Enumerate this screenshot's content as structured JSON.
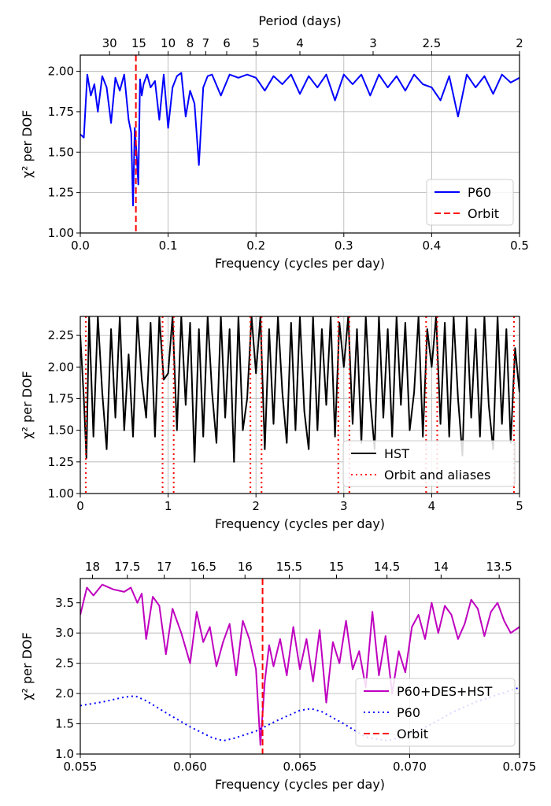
{
  "figure": {
    "panels": [
      "top",
      "middle",
      "bottom"
    ]
  },
  "chart_data": [
    {
      "type": "line",
      "xlabel": "Frequency (cycles per day)",
      "ylabel": "χ² per DOF",
      "top_xlabel": "Period (days)",
      "xlim": [
        0.0,
        0.5
      ],
      "ylim": [
        1.0,
        2.1
      ],
      "xticks": [
        0.0,
        0.1,
        0.2,
        0.3,
        0.4,
        0.5
      ],
      "xtick_labels": [
        "0.0",
        "0.1",
        "0.2",
        "0.3",
        "0.4",
        "0.5"
      ],
      "yticks": [
        1.0,
        1.25,
        1.5,
        1.75,
        2.0
      ],
      "ytick_labels": [
        "1.00",
        "1.25",
        "1.50",
        "1.75",
        "2.00"
      ],
      "top_ticks_period": [
        30,
        15,
        10,
        8,
        7,
        6,
        5,
        4,
        3,
        2.5,
        2
      ],
      "top_tick_labels": [
        "30",
        "15",
        "10",
        "8",
        "7",
        "6",
        "5",
        "4",
        "3",
        "2.5",
        "2"
      ],
      "grid": true,
      "legend_position": "lower-right",
      "series": [
        {
          "name": "P60",
          "color": "#0000ff",
          "style": "solid",
          "x": [
            0.0,
            0.004,
            0.008,
            0.012,
            0.016,
            0.02,
            0.025,
            0.03,
            0.035,
            0.04,
            0.045,
            0.05,
            0.055,
            0.058,
            0.06,
            0.062,
            0.064,
            0.066,
            0.068,
            0.07,
            0.072,
            0.076,
            0.08,
            0.085,
            0.09,
            0.095,
            0.1,
            0.105,
            0.11,
            0.115,
            0.12,
            0.125,
            0.13,
            0.135,
            0.14,
            0.145,
            0.15,
            0.16,
            0.17,
            0.18,
            0.19,
            0.2,
            0.21,
            0.22,
            0.23,
            0.24,
            0.25,
            0.26,
            0.27,
            0.28,
            0.29,
            0.3,
            0.31,
            0.32,
            0.33,
            0.34,
            0.35,
            0.36,
            0.37,
            0.38,
            0.39,
            0.4,
            0.41,
            0.42,
            0.43,
            0.44,
            0.45,
            0.46,
            0.47,
            0.48,
            0.49,
            0.5
          ],
          "y": [
            1.61,
            1.59,
            1.98,
            1.85,
            1.92,
            1.75,
            1.97,
            1.9,
            1.68,
            1.96,
            1.88,
            1.98,
            1.7,
            1.62,
            1.17,
            1.65,
            1.5,
            1.3,
            1.95,
            1.85,
            1.92,
            1.98,
            1.9,
            1.94,
            1.7,
            1.98,
            1.65,
            1.9,
            1.97,
            1.99,
            1.72,
            1.88,
            1.8,
            1.42,
            1.9,
            1.97,
            1.98,
            1.85,
            1.98,
            1.96,
            1.98,
            1.96,
            1.88,
            1.97,
            1.92,
            1.98,
            1.86,
            1.97,
            1.9,
            1.98,
            1.82,
            1.98,
            1.92,
            1.98,
            1.85,
            1.98,
            1.9,
            1.97,
            1.88,
            1.98,
            1.92,
            1.9,
            1.82,
            1.97,
            1.72,
            1.98,
            1.9,
            1.97,
            1.86,
            1.98,
            1.93,
            1.96
          ]
        }
      ],
      "vlines": [
        {
          "name": "Orbit",
          "color": "#ff0000",
          "style": "dashed",
          "x": [
            0.0633
          ]
        }
      ]
    },
    {
      "type": "line",
      "xlabel": "Frequency (cycles per day)",
      "ylabel": "χ² per DOF",
      "xlim": [
        0,
        5
      ],
      "ylim": [
        1.0,
        2.4
      ],
      "xticks": [
        0,
        1,
        2,
        3,
        4,
        5
      ],
      "xtick_labels": [
        "0",
        "1",
        "2",
        "3",
        "4",
        "5"
      ],
      "yticks": [
        1.0,
        1.25,
        1.5,
        1.75,
        2.0,
        2.25
      ],
      "ytick_labels": [
        "1.00",
        "1.25",
        "1.50",
        "1.75",
        "2.00",
        "2.25"
      ],
      "grid": true,
      "legend_position": "lower-right",
      "series": [
        {
          "name": "HST",
          "color": "#000000",
          "style": "solid",
          "x": [
            0.0,
            0.04,
            0.07,
            0.1,
            0.15,
            0.2,
            0.25,
            0.3,
            0.35,
            0.4,
            0.45,
            0.5,
            0.55,
            0.6,
            0.65,
            0.7,
            0.75,
            0.8,
            0.85,
            0.9,
            0.95,
            1.0,
            1.05,
            1.1,
            1.15,
            1.2,
            1.25,
            1.3,
            1.35,
            1.4,
            1.45,
            1.5,
            1.55,
            1.6,
            1.65,
            1.7,
            1.75,
            1.8,
            1.85,
            1.9,
            1.95,
            2.0,
            2.05,
            2.1,
            2.15,
            2.2,
            2.25,
            2.3,
            2.35,
            2.4,
            2.45,
            2.5,
            2.55,
            2.6,
            2.65,
            2.7,
            2.75,
            2.8,
            2.85,
            2.9,
            2.95,
            3.0,
            3.05,
            3.1,
            3.15,
            3.2,
            3.25,
            3.3,
            3.35,
            3.4,
            3.45,
            3.5,
            3.55,
            3.6,
            3.65,
            3.7,
            3.75,
            3.8,
            3.85,
            3.9,
            3.95,
            4.0,
            4.05,
            4.1,
            4.15,
            4.2,
            4.25,
            4.3,
            4.35,
            4.4,
            4.45,
            4.5,
            4.55,
            4.6,
            4.65,
            4.7,
            4.75,
            4.8,
            4.85,
            4.9,
            4.95,
            5.0
          ],
          "y": [
            2.25,
            1.75,
            1.28,
            2.4,
            1.45,
            2.4,
            1.8,
            1.35,
            2.3,
            1.6,
            2.4,
            1.5,
            2.1,
            1.45,
            2.4,
            1.9,
            1.6,
            2.35,
            1.45,
            2.4,
            1.9,
            1.95,
            2.4,
            1.5,
            2.4,
            1.7,
            2.35,
            1.25,
            2.3,
            1.45,
            2.4,
            1.8,
            1.4,
            2.4,
            1.6,
            2.3,
            1.25,
            2.4,
            1.5,
            1.75,
            2.4,
            1.95,
            2.4,
            1.35,
            2.3,
            1.55,
            2.4,
            1.8,
            1.4,
            2.35,
            1.5,
            2.4,
            1.65,
            1.35,
            2.4,
            1.5,
            2.3,
            1.7,
            2.4,
            1.45,
            2.35,
            2.0,
            2.4,
            1.55,
            2.3,
            1.4,
            2.4,
            1.75,
            1.35,
            2.4,
            1.6,
            2.3,
            1.45,
            2.4,
            1.7,
            2.35,
            1.5,
            1.8,
            2.4,
            1.45,
            2.3,
            2.0,
            2.4,
            1.55,
            2.35,
            1.45,
            2.4,
            1.75,
            1.3,
            2.4,
            1.6,
            2.3,
            1.45,
            2.4,
            1.7,
            1.35,
            2.4,
            1.55,
            2.3,
            1.4,
            2.15,
            1.8
          ]
        }
      ],
      "vlines": [
        {
          "name": "Orbit and aliases",
          "color": "#ff0000",
          "style": "dotted",
          "x": [
            0.0633,
            0.9367,
            1.0633,
            1.9367,
            2.0633,
            2.9367,
            3.0633,
            3.9367,
            4.0633,
            4.9367
          ]
        }
      ]
    },
    {
      "type": "line",
      "xlabel": "Frequency (cycles per day)",
      "ylabel": "χ² per DOF",
      "xlim": [
        0.055,
        0.075
      ],
      "ylim": [
        1.0,
        3.9
      ],
      "xticks": [
        0.055,
        0.06,
        0.065,
        0.07,
        0.075
      ],
      "xtick_labels": [
        "0.055",
        "0.060",
        "0.065",
        "0.070",
        "0.075"
      ],
      "yticks": [
        1.0,
        1.5,
        2.0,
        2.5,
        3.0,
        3.5
      ],
      "ytick_labels": [
        "1.0",
        "1.5",
        "2.0",
        "2.5",
        "3.0",
        "3.5"
      ],
      "top_ticks_period": [
        18,
        17.5,
        17,
        16.5,
        16,
        15.5,
        15,
        14.5,
        14,
        13.5
      ],
      "top_tick_labels": [
        "18",
        "17.5",
        "17",
        "16.5",
        "16",
        "15.5",
        "15",
        "14.5",
        "14",
        "13.5"
      ],
      "grid": true,
      "legend_position": "lower-right",
      "series": [
        {
          "name": "P60+DES+HST",
          "color": "#bf00bf",
          "style": "solid",
          "x": [
            0.055,
            0.0553,
            0.0556,
            0.056,
            0.0565,
            0.057,
            0.0573,
            0.0576,
            0.0578,
            0.058,
            0.0583,
            0.0586,
            0.0589,
            0.0592,
            0.0596,
            0.06,
            0.0603,
            0.0606,
            0.0609,
            0.0612,
            0.0615,
            0.0618,
            0.0621,
            0.0624,
            0.0627,
            0.063,
            0.0632,
            0.0634,
            0.0636,
            0.0638,
            0.0641,
            0.0644,
            0.0647,
            0.065,
            0.0653,
            0.0656,
            0.0659,
            0.0662,
            0.0665,
            0.0668,
            0.0671,
            0.0674,
            0.0677,
            0.068,
            0.0683,
            0.0686,
            0.0689,
            0.0692,
            0.0695,
            0.0698,
            0.0701,
            0.0704,
            0.0707,
            0.071,
            0.0713,
            0.0716,
            0.0719,
            0.0722,
            0.0725,
            0.0728,
            0.0731,
            0.0734,
            0.0737,
            0.074,
            0.0743,
            0.0746,
            0.075
          ],
          "y": [
            3.3,
            3.75,
            3.62,
            3.8,
            3.72,
            3.68,
            3.75,
            3.5,
            3.65,
            2.9,
            3.6,
            3.45,
            2.65,
            3.4,
            3.0,
            2.5,
            3.35,
            2.85,
            3.1,
            2.45,
            2.85,
            3.15,
            2.3,
            3.2,
            2.9,
            2.4,
            1.15,
            2.2,
            2.8,
            2.45,
            2.9,
            2.3,
            3.1,
            2.4,
            2.9,
            2.2,
            3.05,
            1.85,
            2.85,
            2.5,
            3.2,
            2.4,
            2.7,
            2.1,
            3.35,
            2.3,
            2.95,
            2.0,
            2.7,
            2.35,
            3.1,
            3.3,
            2.9,
            3.5,
            3.0,
            3.45,
            3.3,
            2.9,
            3.15,
            3.55,
            3.4,
            2.95,
            3.35,
            3.5,
            3.2,
            3.0,
            3.1
          ]
        },
        {
          "name": "P60",
          "color": "#0000ff",
          "style": "dotted",
          "x": [
            0.055,
            0.056,
            0.057,
            0.0575,
            0.058,
            0.059,
            0.06,
            0.061,
            0.0615,
            0.062,
            0.063,
            0.064,
            0.065,
            0.0655,
            0.066,
            0.067,
            0.068,
            0.069,
            0.07,
            0.071,
            0.072,
            0.073,
            0.074,
            0.075
          ],
          "y": [
            1.8,
            1.86,
            1.94,
            1.96,
            1.88,
            1.66,
            1.45,
            1.27,
            1.22,
            1.26,
            1.38,
            1.56,
            1.72,
            1.75,
            1.7,
            1.5,
            1.28,
            1.22,
            1.32,
            1.5,
            1.7,
            1.86,
            1.98,
            2.1
          ]
        }
      ],
      "vlines": [
        {
          "name": "Orbit",
          "color": "#ff0000",
          "style": "dashed",
          "x": [
            0.0633
          ]
        }
      ]
    }
  ]
}
